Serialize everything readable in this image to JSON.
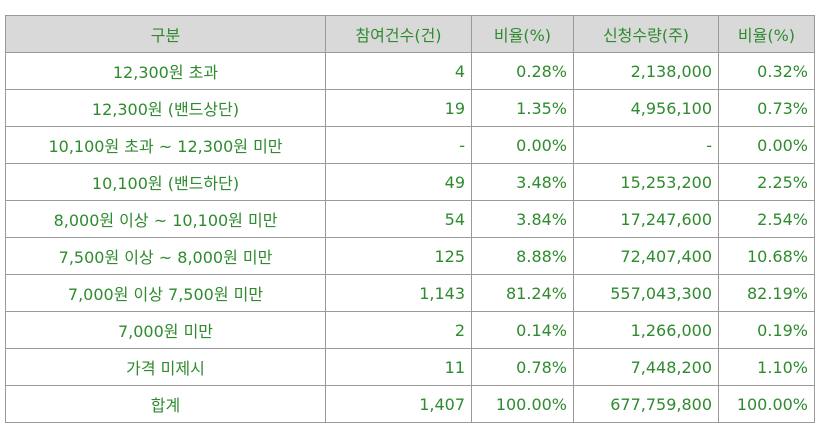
{
  "table": {
    "headers": [
      "구분",
      "참여건수(건)",
      "비율(%)",
      "신청수량(주)",
      "비율(%)"
    ],
    "rows": [
      [
        "12,300원 초과",
        "4",
        "0.28%",
        "2,138,000",
        "0.32%"
      ],
      [
        "12,300원 (밴드상단)",
        "19",
        "1.35%",
        "4,956,100",
        "0.73%"
      ],
      [
        "10,100원 초과 ~ 12,300원 미만",
        "-",
        "0.00%",
        "-",
        "0.00%"
      ],
      [
        "10,100원 (밴드하단)",
        "49",
        "3.48%",
        "15,253,200",
        "2.25%"
      ],
      [
        "8,000원 이상 ~ 10,100원 미만",
        "54",
        "3.84%",
        "17,247,600",
        "2.54%"
      ],
      [
        "7,500원 이상 ~ 8,000원 미만",
        "125",
        "8.88%",
        "72,407,400",
        "10.68%"
      ],
      [
        "7,000원 이상 7,500원 미만",
        "1,143",
        "81.24%",
        "557,043,300",
        "82.19%"
      ],
      [
        "7,000원 미만",
        "2",
        "0.14%",
        "1,266,000",
        "0.19%"
      ],
      [
        "가격 미제시",
        "11",
        "0.78%",
        "7,448,200",
        "1.10%"
      ],
      [
        "합계",
        "1,407",
        "100.00%",
        "677,759,800",
        "100.00%"
      ]
    ]
  },
  "colors": {
    "text": "#2e8b2e",
    "header_bg": "#d9d9d9",
    "border": "#9a9a9a"
  }
}
